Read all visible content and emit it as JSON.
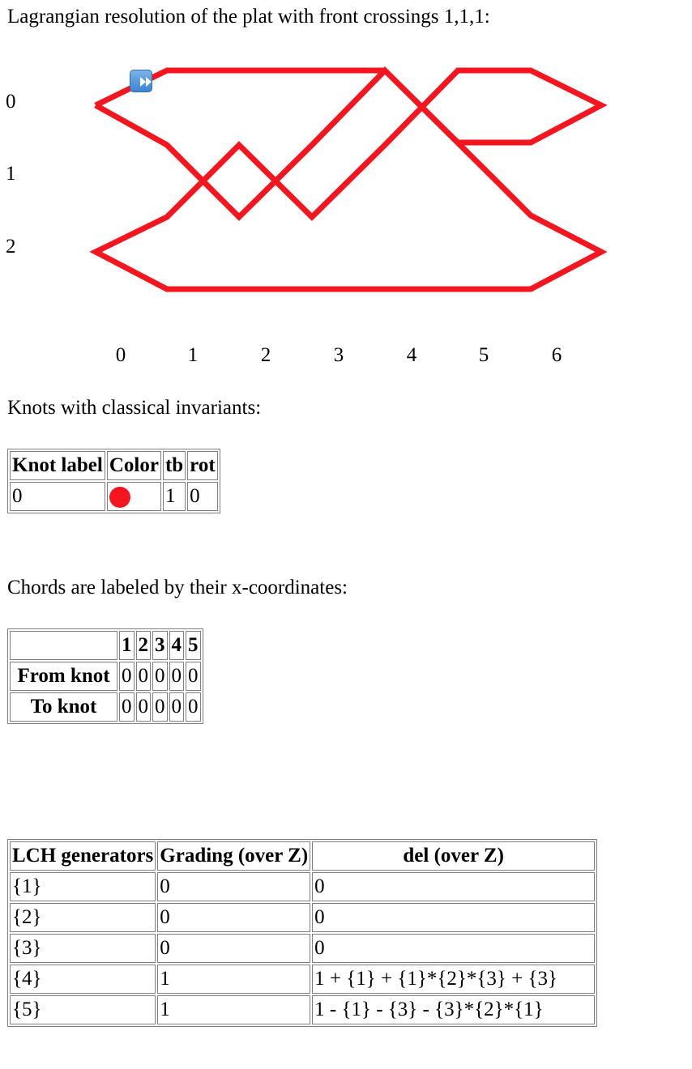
{
  "plat": {
    "title": "Lagrangian resolution of the plat with front crossings 1,1,1:",
    "row_labels": [
      "0",
      "1",
      "2"
    ],
    "column_labels": [
      "0",
      "1",
      "2",
      "3",
      "4",
      "5",
      "6"
    ],
    "strand_color": "#f5151f",
    "button_icon": "fast-forward-icon"
  },
  "knots": {
    "title": "Knots with classical invariants:",
    "headers": [
      "Knot label",
      "Color",
      "tb",
      "rot"
    ],
    "rows": [
      {
        "label": "0",
        "color": "#f5151f",
        "tb": "1",
        "rot": "0"
      }
    ]
  },
  "chords": {
    "title": "Chords are labeled by their x-coordinates:",
    "columns": [
      "",
      "1",
      "2",
      "3",
      "4",
      "5"
    ],
    "from_label": "From knot",
    "from": [
      "0",
      "0",
      "0",
      "0",
      "0"
    ],
    "to_label": "To knot",
    "to": [
      "0",
      "0",
      "0",
      "0",
      "0"
    ]
  },
  "lch": {
    "headers": [
      "LCH generators",
      "Grading (over Z)",
      "del (over Z)"
    ],
    "rows": [
      {
        "gen": "{1}",
        "grading": "0",
        "del": "0"
      },
      {
        "gen": "{2}",
        "grading": "0",
        "del": "0"
      },
      {
        "gen": "{3}",
        "grading": "0",
        "del": "0"
      },
      {
        "gen": "{4}",
        "grading": "1",
        "del": "1 + {1} + {1}*{2}*{3} + {3}"
      },
      {
        "gen": "{5}",
        "grading": "1",
        "del": "1 - {1} - {3} - {3}*{2}*{1}"
      }
    ]
  }
}
